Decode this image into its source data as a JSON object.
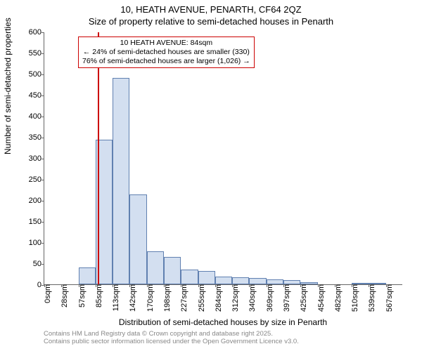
{
  "title": {
    "line1": "10, HEATH AVENUE, PENARTH, CF64 2QZ",
    "line2": "Size of property relative to semi-detached houses in Penarth",
    "fontsize": 13
  },
  "axes": {
    "ylabel": "Number of semi-detached properties",
    "xlabel": "Distribution of semi-detached houses by size in Penarth",
    "label_fontsize": 12,
    "tick_fontsize": 11
  },
  "yaxis": {
    "min": 0,
    "max": 600,
    "ticks": [
      0,
      50,
      100,
      150,
      200,
      250,
      300,
      350,
      400,
      450,
      500,
      550,
      600
    ]
  },
  "xaxis": {
    "tick_labels": [
      "0sqm",
      "28sqm",
      "57sqm",
      "85sqm",
      "113sqm",
      "142sqm",
      "170sqm",
      "198sqm",
      "227sqm",
      "255sqm",
      "284sqm",
      "312sqm",
      "340sqm",
      "369sqm",
      "397sqm",
      "425sqm",
      "454sqm",
      "482sqm",
      "510sqm",
      "539sqm",
      "567sqm"
    ]
  },
  "histogram": {
    "type": "histogram",
    "bar_fill": "#d3dff0",
    "bar_border": "#6080b0",
    "bin_count": 21,
    "values": [
      0,
      0,
      40,
      343,
      490,
      213,
      78,
      65,
      35,
      32,
      18,
      16,
      15,
      12,
      10,
      5,
      0,
      0,
      3,
      2,
      0
    ]
  },
  "marker": {
    "color": "#cc0000",
    "position_sqm": 84,
    "max_sqm": 567
  },
  "callout": {
    "line1": "10 HEATH AVENUE: 84sqm",
    "line2": "← 24% of semi-detached houses are smaller (330)",
    "line3": "76% of semi-detached houses are larger (1,026) →",
    "border_color": "#cc0000",
    "fontsize": 10.5
  },
  "footer": {
    "line1": "Contains HM Land Registry data © Crown copyright and database right 2025.",
    "line2": "Contains public sector information licensed under the Open Government Licence v3.0.",
    "fontsize": 9.5,
    "color": "#888888"
  },
  "colors": {
    "background": "#ffffff",
    "axis": "#666666",
    "text": "#000000"
  }
}
